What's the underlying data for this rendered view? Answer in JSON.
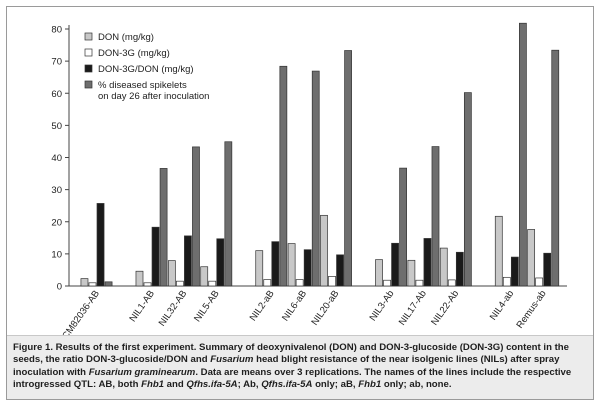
{
  "chart_data": {
    "type": "bar",
    "title": "",
    "xlabel": "",
    "ylabel": "",
    "ylim": [
      0,
      80
    ],
    "yticks": [
      0,
      10,
      20,
      30,
      40,
      50,
      60,
      70,
      80
    ],
    "grid": false,
    "legend_position": "top-left",
    "categories": [
      "CM82036-AB",
      "NIL1-AB",
      "NIL32-AB",
      "NIL5-AB",
      "NIL2-aB",
      "NIL6-aB",
      "NIL20-aB",
      "NIL3-Ab",
      "NIL17-Ab",
      "NIL22-Ab",
      "NIL4-ab",
      "Remus-ab"
    ],
    "groups": [
      [
        0
      ],
      [
        1,
        2,
        3
      ],
      [
        4,
        5,
        6
      ],
      [
        7,
        8,
        9
      ],
      [
        10,
        11
      ]
    ],
    "series": [
      {
        "name": "DON (mg/kg)",
        "color": "#c8c8c8",
        "values": [
          2.3,
          4.6,
          7.9,
          6.0,
          11.0,
          13.2,
          22.0,
          8.2,
          8.0,
          11.8,
          21.7,
          17.6
        ]
      },
      {
        "name": "DON-3G (mg/kg)",
        "color": "#ffffff",
        "values": [
          1.0,
          1.0,
          1.5,
          1.5,
          2.0,
          2.0,
          3.0,
          1.8,
          1.8,
          1.9,
          2.7,
          2.5
        ]
      },
      {
        "name": "DON-3G/DON (mg/kg)",
        "color": "#1a1a1a",
        "values": [
          25.7,
          18.3,
          15.6,
          14.7,
          13.8,
          11.3,
          9.7,
          13.3,
          14.8,
          10.5,
          9.0,
          10.2
        ]
      },
      {
        "name": "% diseased spikelets\non day 26 after inoculation",
        "color": "#6e6e6e",
        "values": [
          1.3,
          36.6,
          43.3,
          44.9,
          68.4,
          66.9,
          73.3,
          36.7,
          43.4,
          60.2,
          81.8,
          73.4
        ]
      }
    ]
  },
  "caption": {
    "figure_label": "Figure 1.",
    "s1": " Results of the first experiment. Summary of deoxynivalenol (DON) and DON-3-glucoside (DON-3G) content in the seeds, the ratio DON-3-glucoside/DON and ",
    "i1": "Fusarium",
    "s2": " head blight resistance of the near isolgenic lines (NILs) after spray inoculation with ",
    "i2": "Fusarium graminearum",
    "s3": ". Data are means over 3 replications. The names of the lines include the respective introgressed QTL: AB, both ",
    "i3": "Fhb1",
    "s4": " and ",
    "i4": "Qfhs.ifa-5A",
    "s5": "; Ab, ",
    "i5": "Qfhs.ifa-5A",
    "s6": " only; aB, ",
    "i6": "Fhb1",
    "s7": " only; ab, none."
  }
}
